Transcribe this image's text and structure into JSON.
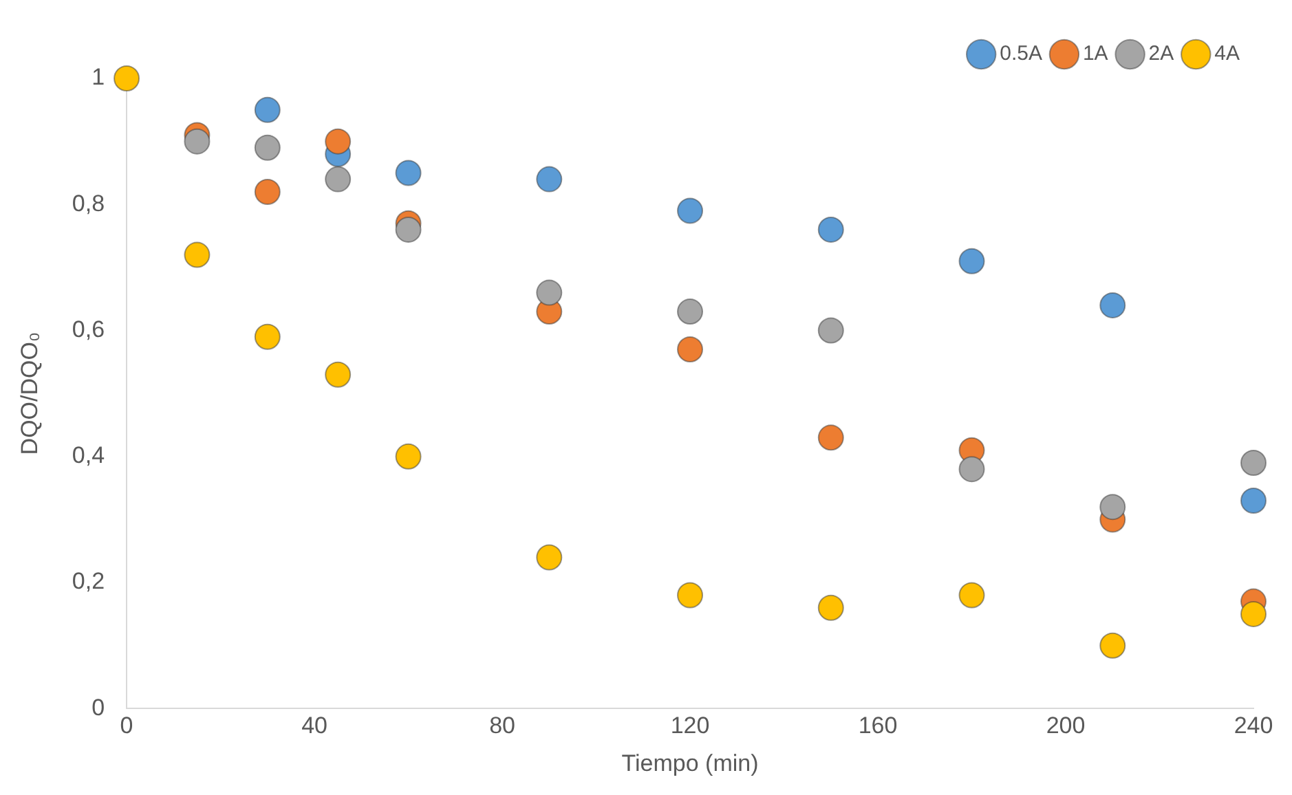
{
  "chart_data": {
    "type": "scatter",
    "xlabel": "Tiempo (min)",
    "ylabel": "DQO/DQO₀",
    "x": [
      0,
      15,
      30,
      45,
      60,
      90,
      120,
      150,
      180,
      210,
      240
    ],
    "series": [
      {
        "name": "0.5A",
        "color": "#5b9bd5",
        "values": [
          null,
          null,
          0.95,
          0.88,
          0.85,
          0.84,
          0.79,
          0.76,
          0.71,
          0.64,
          0.33
        ]
      },
      {
        "name": "1A",
        "color": "#ed7d31",
        "values": [
          null,
          0.91,
          0.82,
          0.9,
          0.77,
          0.63,
          0.57,
          0.43,
          0.41,
          0.3,
          0.17
        ]
      },
      {
        "name": "2A",
        "color": "#a5a5a5",
        "values": [
          null,
          0.9,
          0.89,
          0.84,
          0.76,
          0.66,
          0.63,
          0.6,
          0.38,
          0.32,
          0.39
        ]
      },
      {
        "name": "4A",
        "color": "#ffc000",
        "values": [
          1,
          0.72,
          0.59,
          0.53,
          0.4,
          0.24,
          0.18,
          0.16,
          0.18,
          0.1,
          0.15
        ]
      }
    ],
    "xlim": [
      0,
      240
    ],
    "xticks": [
      0,
      40,
      80,
      120,
      160,
      200,
      240
    ],
    "ylim": [
      0,
      1
    ],
    "yticks": [
      0,
      {
        "value": 0.2,
        "label": "0,2"
      },
      {
        "value": 0.4,
        "label": "0,4"
      },
      {
        "value": 0.6,
        "label": "0,6"
      },
      {
        "value": 0.8,
        "label": "0,8"
      },
      1
    ],
    "grid": false,
    "legend": "top right",
    "marker": "circle"
  }
}
